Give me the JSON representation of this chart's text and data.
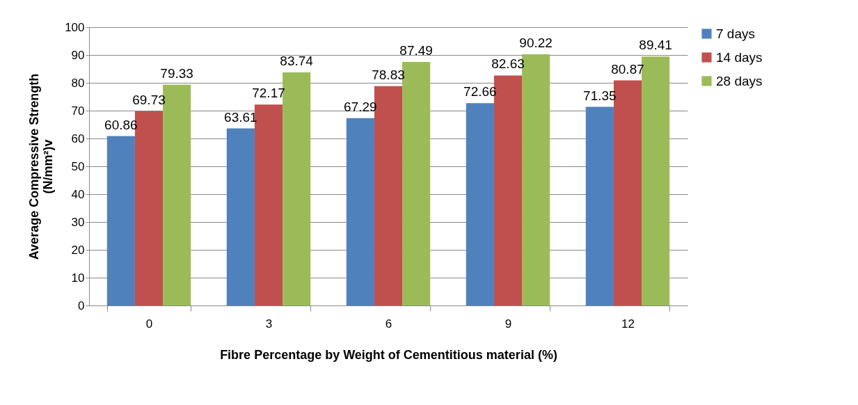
{
  "chart_data": {
    "type": "bar",
    "xlabel": "Fibre Percentage by Weight of Cementitious material (%)",
    "ylabel": "Average Compressive Strength (N/mm²)v",
    "categories": [
      "0",
      "3",
      "6",
      "9",
      "12"
    ],
    "series": [
      {
        "name": "7 days",
        "color": "#4f81bd",
        "values": [
          60.86,
          63.61,
          67.29,
          72.66,
          71.35
        ]
      },
      {
        "name": "14 days",
        "color": "#c0504d",
        "values": [
          69.73,
          72.17,
          78.83,
          82.63,
          80.87
        ]
      },
      {
        "name": "28 days",
        "color": "#9bbb59",
        "values": [
          79.33,
          83.74,
          87.49,
          90.22,
          89.41
        ]
      }
    ],
    "ylim": [
      0,
      100
    ],
    "yticks": [
      0,
      10,
      20,
      30,
      40,
      50,
      60,
      70,
      80,
      90,
      100
    ],
    "grid": "y",
    "legend": "right",
    "data_labels": true
  }
}
